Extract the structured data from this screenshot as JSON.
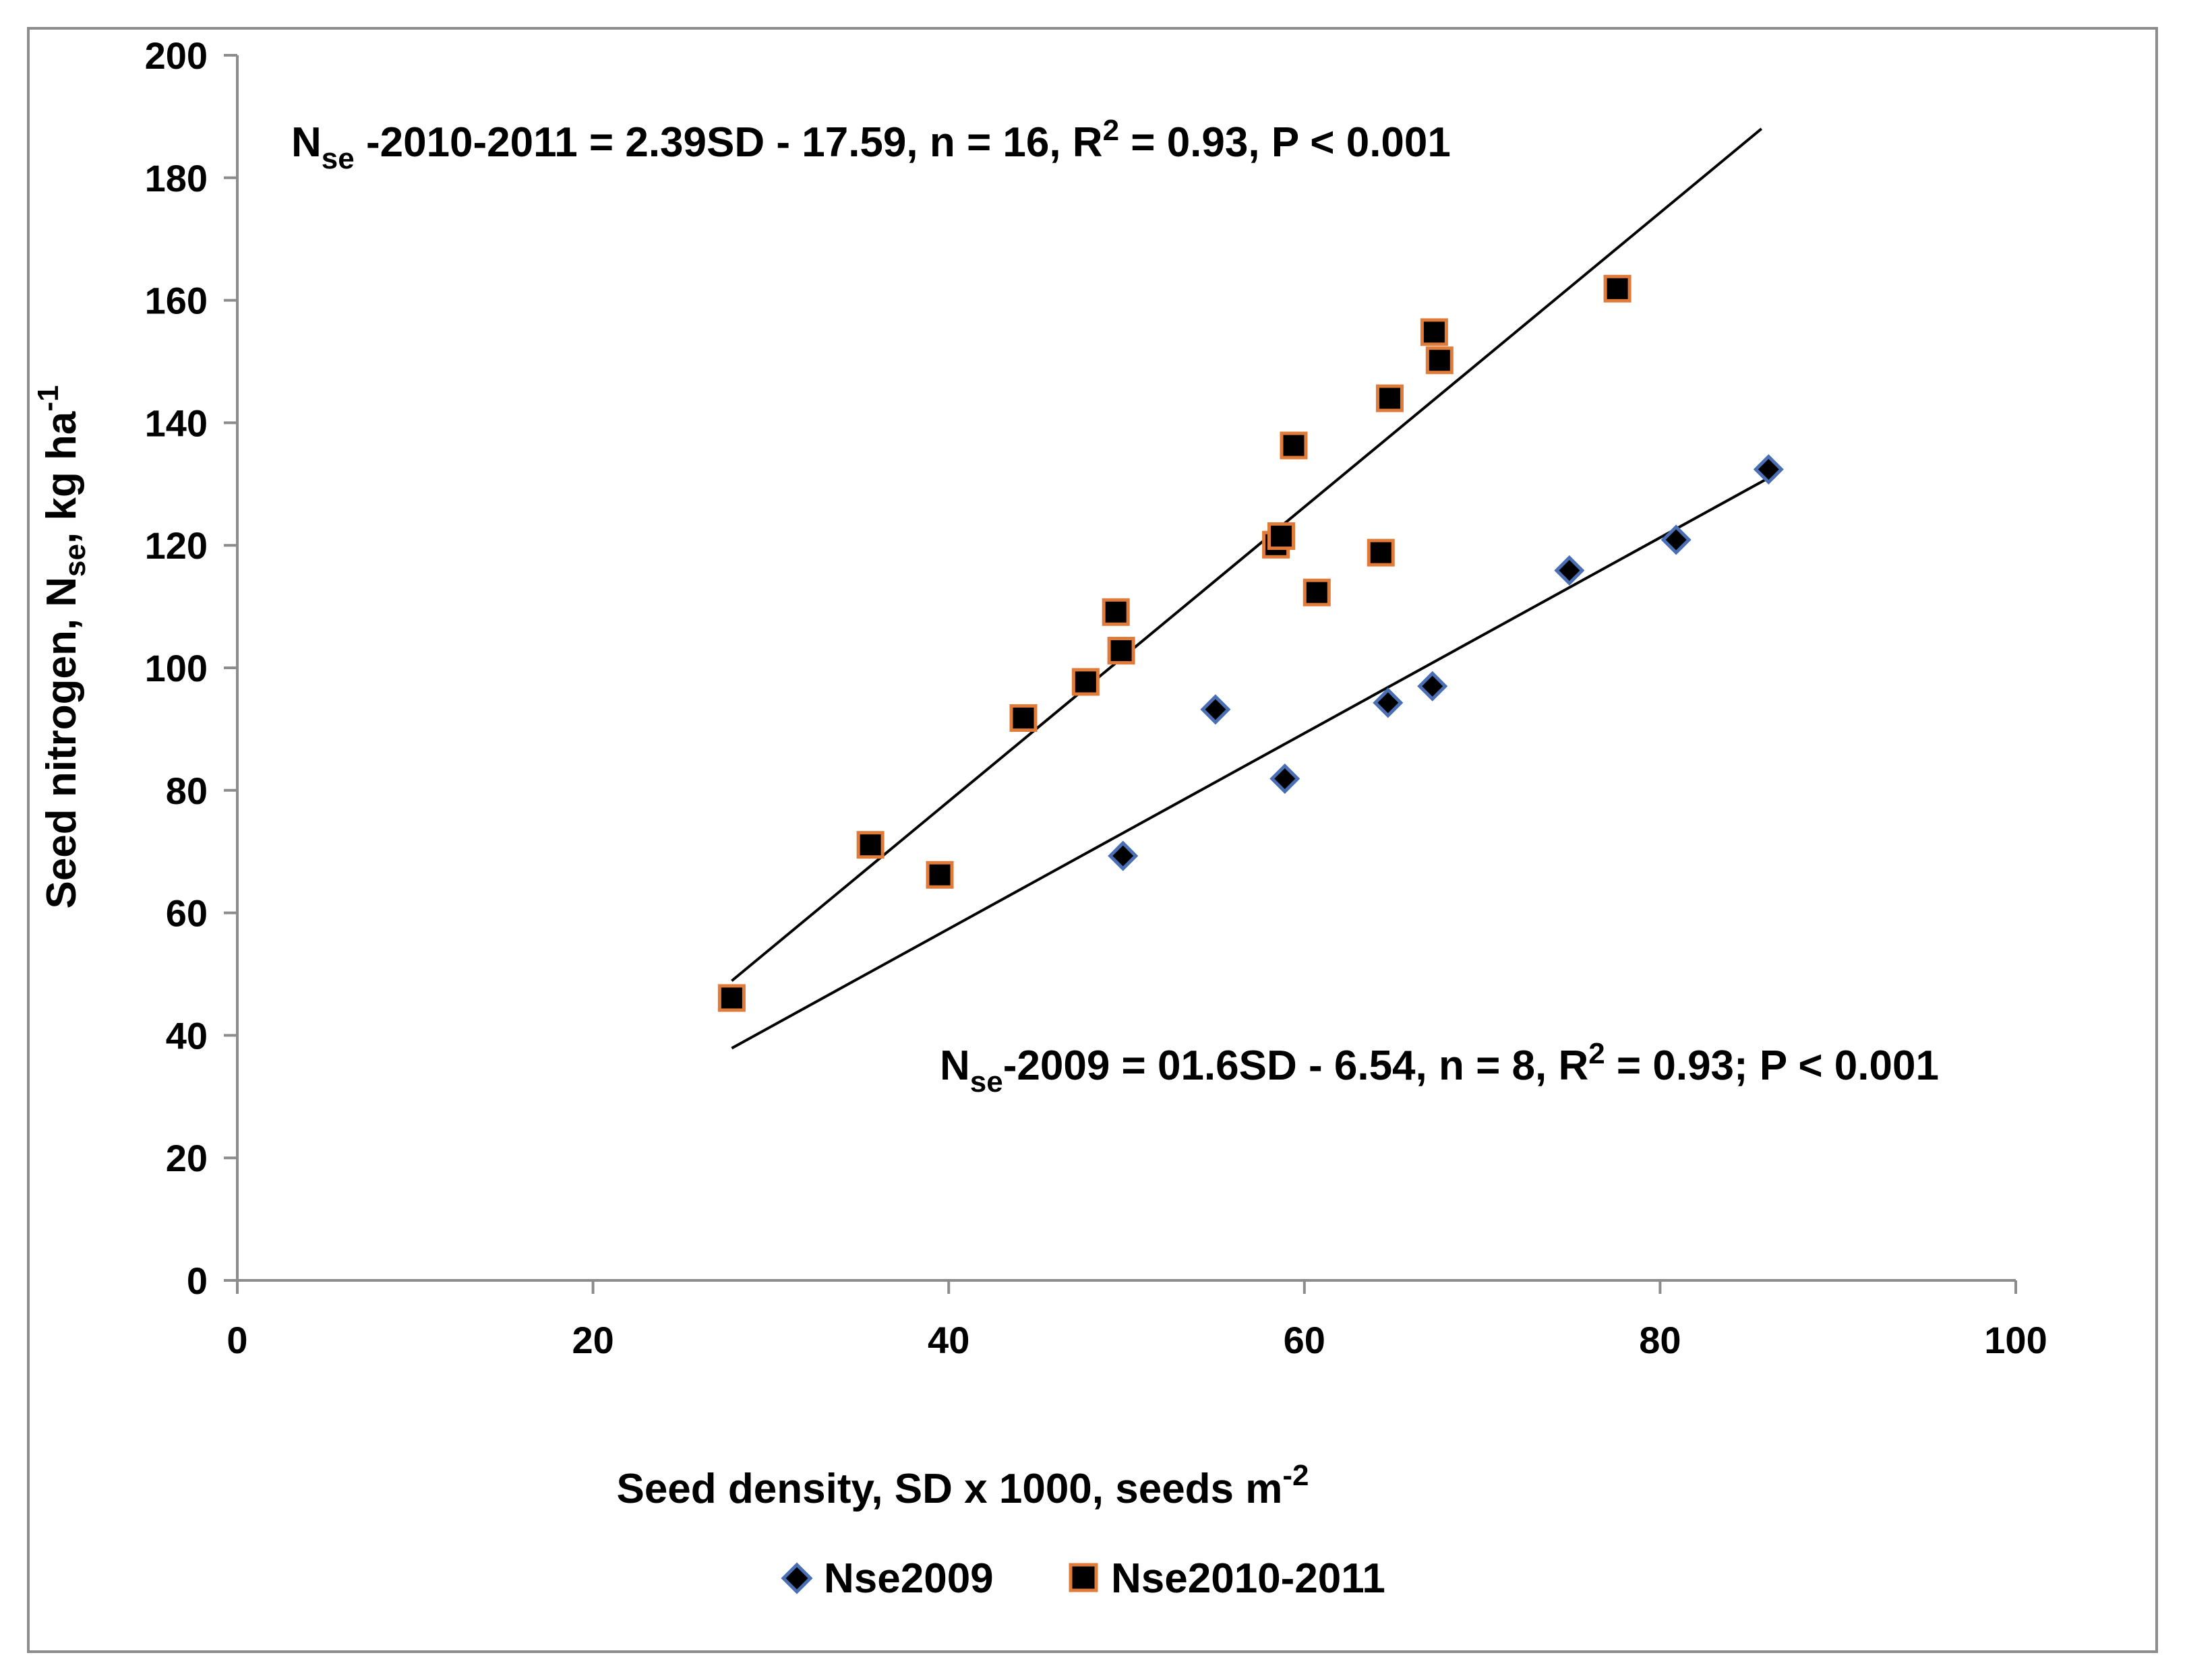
{
  "chart_data": {
    "type": "scatter",
    "title": "",
    "xlabel": {
      "main": "Seed density, SD x 1000, seeds m",
      "sup": "-2"
    },
    "ylabel": {
      "pre": "Seed nitrogen, N",
      "sub": "se",
      "mid": ", kg ha",
      "sup": "-1"
    },
    "xlim": [
      0,
      100
    ],
    "ylim": [
      0,
      200
    ],
    "x_ticks": [
      0,
      20,
      40,
      60,
      80,
      100
    ],
    "y_ticks": [
      0,
      20,
      40,
      60,
      80,
      100,
      120,
      140,
      160,
      180,
      200
    ],
    "grid": false,
    "legend_position": "bottom",
    "series": [
      {
        "name": "Nse2009",
        "marker": "diamond",
        "fill": "#000000",
        "stroke": "#4a6fb5",
        "points": [
          {
            "x": 49.8,
            "y": 69.3
          },
          {
            "x": 55.0,
            "y": 93.2
          },
          {
            "x": 58.9,
            "y": 81.9
          },
          {
            "x": 64.7,
            "y": 94.3
          },
          {
            "x": 67.2,
            "y": 97.0
          },
          {
            "x": 74.9,
            "y": 115.9
          },
          {
            "x": 80.9,
            "y": 120.9
          },
          {
            "x": 86.1,
            "y": 132.4
          }
        ],
        "trend": {
          "x_start": 27.8,
          "x_end": 86.1,
          "y_start": 37.9,
          "y_end": 131.0
        },
        "equation": {
          "a": "N",
          "sub": "se",
          "b": "-2009 = 01.6SD - 6.54, n = 8, R",
          "sup": "2",
          "c": " = 0.93; P < 0.001"
        }
      },
      {
        "name": "Nse2010-2011",
        "marker": "square",
        "fill": "#000000",
        "stroke": "#e07b39",
        "points": [
          {
            "x": 27.8,
            "y": 46.1
          },
          {
            "x": 35.6,
            "y": 71.1
          },
          {
            "x": 39.5,
            "y": 66.2
          },
          {
            "x": 44.2,
            "y": 91.8
          },
          {
            "x": 47.7,
            "y": 97.7
          },
          {
            "x": 49.4,
            "y": 109.1
          },
          {
            "x": 49.7,
            "y": 102.8
          },
          {
            "x": 58.4,
            "y": 120.1
          },
          {
            "x": 58.7,
            "y": 121.5
          },
          {
            "x": 59.4,
            "y": 136.3
          },
          {
            "x": 60.7,
            "y": 112.3
          },
          {
            "x": 64.3,
            "y": 118.8
          },
          {
            "x": 64.8,
            "y": 144.0
          },
          {
            "x": 67.3,
            "y": 154.8
          },
          {
            "x": 67.6,
            "y": 150.2
          },
          {
            "x": 77.6,
            "y": 161.9
          }
        ],
        "trend": {
          "x_start": 27.8,
          "x_end": 85.7,
          "y_start": 48.9,
          "y_end": 188.0
        },
        "equation": {
          "a": "N",
          "sub": "se",
          "b": " -2010-2011 = 2.39SD - 17.59, n = 16, R",
          "sup": "2",
          "c": " = 0.93, P < 0.001"
        }
      }
    ]
  }
}
